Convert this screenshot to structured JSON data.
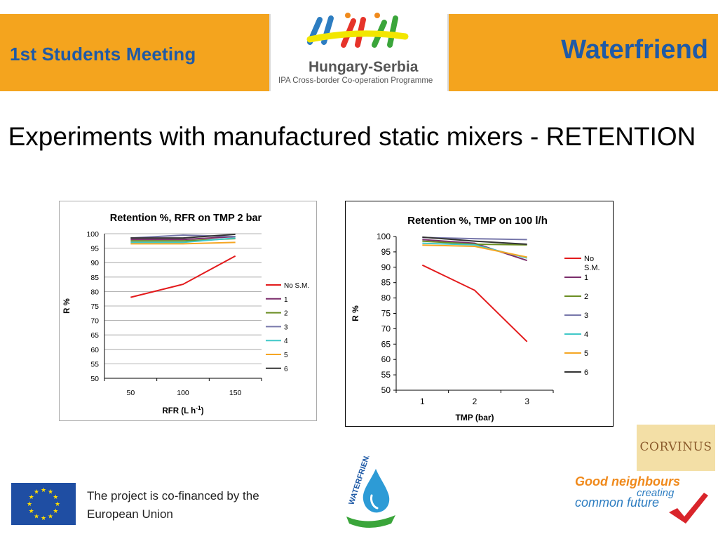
{
  "header": {
    "meeting_title": "1st Students Meeting",
    "brand_title": "Waterfriend",
    "logo_name": "Hungary-Serbia",
    "logo_subtitle": "IPA Cross-border Co-operation Programme"
  },
  "slide": {
    "title": "Experiments with manufactured static mixers - RETENTION"
  },
  "footer": {
    "cofinance_line1": "The project is co-financed by the",
    "cofinance_line2": "European Union",
    "corvinus": "CORVINUS",
    "good_neighbours": "Good neighbours",
    "creating": "creating",
    "common_future": "common future",
    "waterfriend_logo_text": "WATERFRIEND"
  },
  "colors": {
    "banner": "#f4a41e",
    "brand_blue": "#1f5aa6",
    "series": [
      "#e31a1c",
      "#7b2d6b",
      "#6b8e23",
      "#7777aa",
      "#40c8c8",
      "#f5a623",
      "#333333"
    ]
  },
  "chart_data": [
    {
      "type": "line",
      "title": "Retention %, RFR on TMP 2 bar",
      "xlabel": "RFR (L h",
      "xlabel_sup": "-1",
      "xlabel_end": ")",
      "ylabel": "R %",
      "categories": [
        "50",
        "100",
        "150"
      ],
      "ylim": [
        50,
        100
      ],
      "yticks": [
        50,
        55,
        60,
        65,
        70,
        75,
        80,
        85,
        90,
        95,
        100
      ],
      "grid": true,
      "legend": "right",
      "series": [
        {
          "name": "No S.M.",
          "values": [
            78,
            82.5,
            92.3
          ]
        },
        {
          "name": "1",
          "values": [
            98,
            98,
            99
          ]
        },
        {
          "name": "2",
          "values": [
            97.5,
            97.5,
            98.3
          ]
        },
        {
          "name": "3",
          "values": [
            98.5,
            99.5,
            99
          ]
        },
        {
          "name": "4",
          "values": [
            97,
            97,
            98.5
          ]
        },
        {
          "name": "5",
          "values": [
            96.5,
            96.5,
            97
          ]
        },
        {
          "name": "6",
          "values": [
            98.5,
            98.5,
            99.8
          ]
        }
      ]
    },
    {
      "type": "line",
      "title": "Retention %, TMP on 100 l/h",
      "xlabel": "TMP (bar)",
      "ylabel": "R %",
      "categories": [
        "1",
        "2",
        "3"
      ],
      "ylim": [
        50,
        100
      ],
      "yticks": [
        50,
        55,
        60,
        65,
        70,
        75,
        80,
        85,
        90,
        95,
        100
      ],
      "grid": false,
      "legend": "right",
      "series": [
        {
          "name": "No S.M.",
          "values": [
            90.7,
            82.5,
            65.8
          ]
        },
        {
          "name": "1",
          "values": [
            99,
            97.8,
            92.2
          ]
        },
        {
          "name": "2",
          "values": [
            98.5,
            97.5,
            97.3
          ]
        },
        {
          "name": "3",
          "values": [
            99.7,
            99.3,
            99
          ]
        },
        {
          "name": "4",
          "values": [
            97.8,
            97.3,
            93
          ]
        },
        {
          "name": "5",
          "values": [
            97.2,
            96.8,
            93.3
          ]
        },
        {
          "name": "6",
          "values": [
            99.8,
            98.5,
            97.5
          ]
        }
      ]
    }
  ]
}
